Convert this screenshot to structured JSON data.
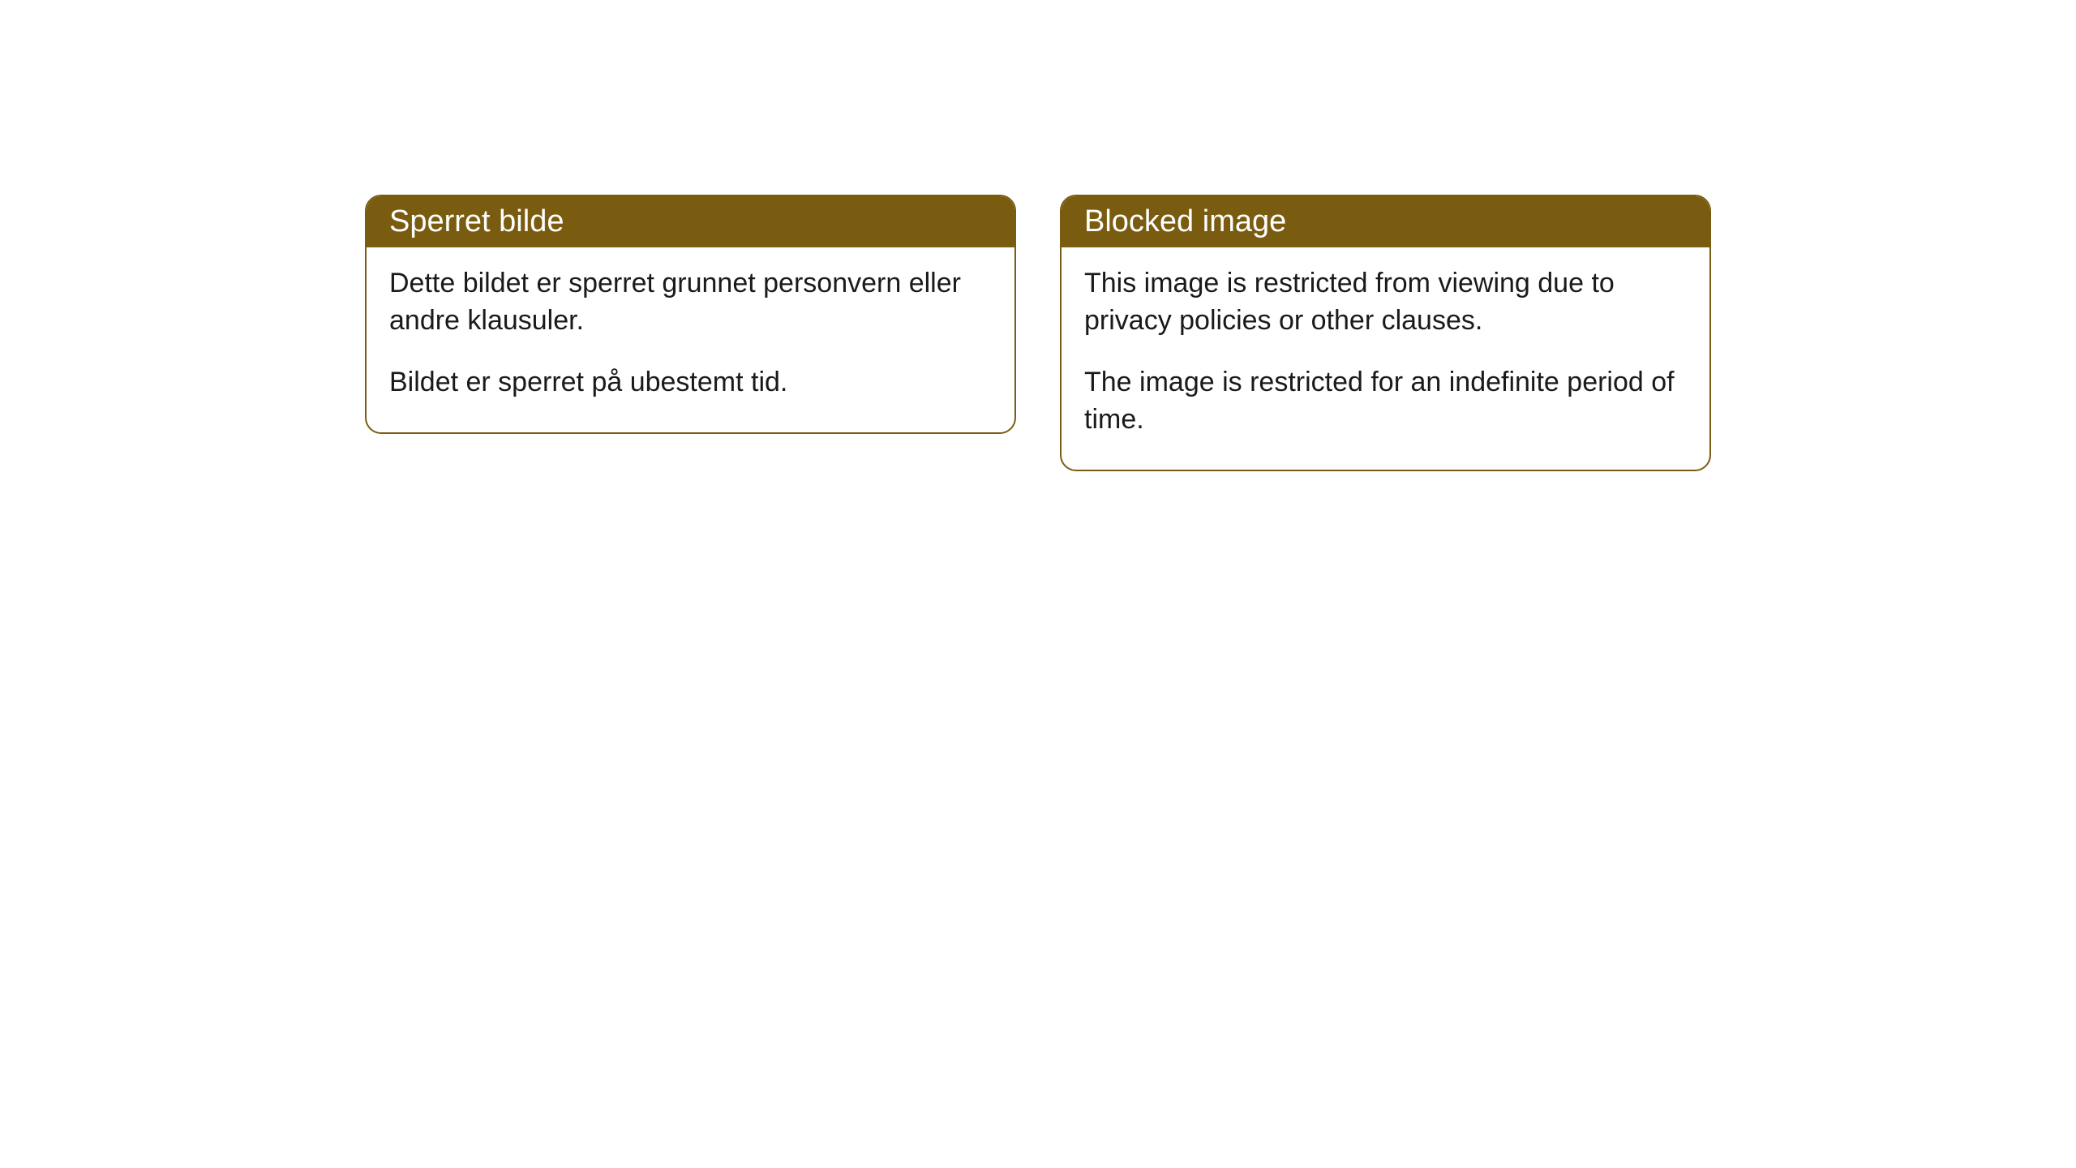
{
  "cards": [
    {
      "title": "Sperret bilde",
      "paragraph1": "Dette bildet er sperret grunnet personvern eller andre klausuler.",
      "paragraph2": "Bildet er sperret på ubestemt tid."
    },
    {
      "title": "Blocked image",
      "paragraph1": "This image is restricted from viewing due to privacy policies or other clauses.",
      "paragraph2": "The image is restricted for an indefinite period of time."
    }
  ],
  "style": {
    "header_background": "#7a5c10",
    "header_text_color": "#ffffff",
    "border_color": "#7a5c10",
    "body_background": "#ffffff",
    "body_text_color": "#1a1a1a",
    "border_radius": 20,
    "header_fontsize": 38,
    "body_fontsize": 34
  }
}
